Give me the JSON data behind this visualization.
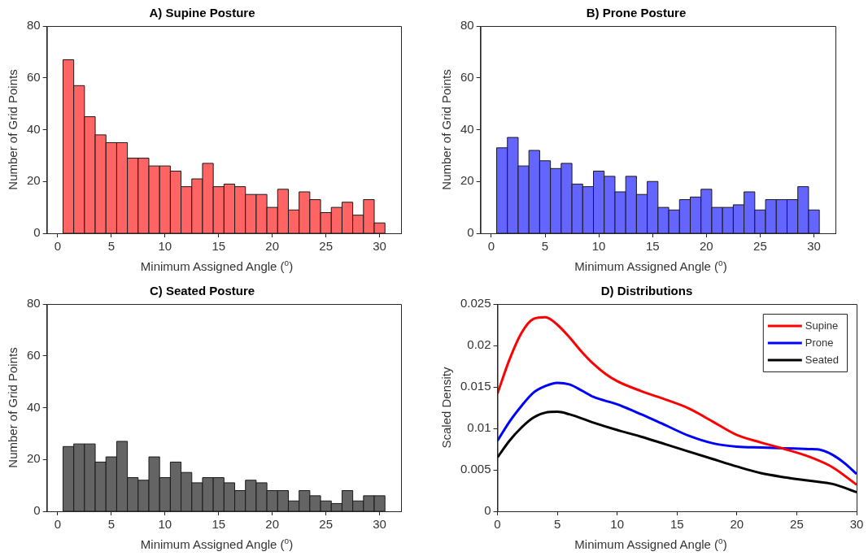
{
  "chart_data": [
    {
      "type": "histogram",
      "title": "A) Supine Posture",
      "xlabel": "Minimum Assigned Angle ($^{o}$)",
      "ylabel": "Number of Grid Points",
      "bins": [
        0.5,
        1.5,
        2.5,
        3.5,
        4.5,
        5.5,
        6.5,
        7.5,
        8.5,
        9.5,
        10.5,
        11.5,
        12.5,
        13.5,
        14.5,
        15.5,
        16.5,
        17.5,
        18.5,
        19.5,
        20.5,
        21.5,
        22.5,
        23.5,
        24.5,
        25.5,
        26.5,
        27.5,
        28.5,
        29.5,
        30.5
      ],
      "values": [
        67,
        57,
        45,
        38,
        35,
        35,
        29,
        29,
        26,
        26,
        24,
        18,
        21,
        27,
        18,
        19,
        18,
        15,
        15,
        10,
        17,
        9,
        16,
        13,
        8,
        10,
        12,
        7,
        13,
        4
      ],
      "color": "#ff6464",
      "xlim": [
        -1,
        32
      ],
      "xticks": [
        0,
        5,
        10,
        15,
        20,
        25,
        30
      ],
      "ylim": [
        0,
        80
      ],
      "yticks": [
        0,
        20,
        40,
        60,
        80
      ]
    },
    {
      "type": "histogram",
      "title": "B) Prone Posture",
      "xlabel": "Minimum Assigned Angle ($^{o}$)",
      "ylabel": "Number of Grid Points",
      "bins": [
        0.5,
        1.5,
        2.5,
        3.5,
        4.5,
        5.5,
        6.5,
        7.5,
        8.5,
        9.5,
        10.5,
        11.5,
        12.5,
        13.5,
        14.5,
        15.5,
        16.5,
        17.5,
        18.5,
        19.5,
        20.5,
        21.5,
        22.5,
        23.5,
        24.5,
        25.5,
        26.5,
        27.5,
        28.5,
        29.5,
        30.5
      ],
      "values": [
        33,
        37,
        26,
        32,
        28,
        25,
        27,
        19,
        18,
        24,
        22,
        16,
        22,
        15,
        20,
        10,
        9,
        13,
        14,
        17,
        10,
        10,
        11,
        16,
        9,
        13,
        13,
        13,
        18,
        9
      ],
      "color": "#6464ff",
      "xlim": [
        -1,
        32
      ],
      "xticks": [
        0,
        5,
        10,
        15,
        20,
        25,
        30
      ],
      "ylim": [
        0,
        80
      ],
      "yticks": [
        0,
        20,
        40,
        60,
        80
      ]
    },
    {
      "type": "histogram",
      "title": "C) Seated Posture",
      "xlabel": "Minimum Assigned Angle ($^{o}$)",
      "ylabel": "Number of Grid Points",
      "bins": [
        0.5,
        1.5,
        2.5,
        3.5,
        4.5,
        5.5,
        6.5,
        7.5,
        8.5,
        9.5,
        10.5,
        11.5,
        12.5,
        13.5,
        14.5,
        15.5,
        16.5,
        17.5,
        18.5,
        19.5,
        20.5,
        21.5,
        22.5,
        23.5,
        24.5,
        25.5,
        26.5,
        27.5,
        28.5,
        29.5,
        30.5
      ],
      "values": [
        25,
        26,
        26,
        19,
        21,
        27,
        13,
        12,
        21,
        13,
        19,
        15,
        11,
        13,
        13,
        11,
        8,
        12,
        11,
        8,
        8,
        4,
        8,
        6,
        4,
        3,
        8,
        4,
        6,
        6
      ],
      "color": "#646464",
      "xlim": [
        -1,
        32
      ],
      "xticks": [
        0,
        5,
        10,
        15,
        20,
        25,
        30
      ],
      "ylim": [
        0,
        80
      ],
      "yticks": [
        0,
        20,
        40,
        60,
        80
      ]
    },
    {
      "type": "line",
      "title": "D) Distributions",
      "xlabel": "Minimum Assigned Angle ($^{o}$)",
      "ylabel": "Scaled Density",
      "legend": "top right",
      "xlim": [
        0,
        30
      ],
      "xticks": [
        0,
        5,
        10,
        15,
        20,
        25,
        30
      ],
      "ylim": [
        0,
        0.025
      ],
      "yticks": [
        0,
        0.005,
        0.01,
        0.015,
        0.02,
        0.025
      ],
      "series": [
        {
          "name": "Supine",
          "color": "#ff0000",
          "x": [
            0,
            1,
            2,
            3,
            4,
            5,
            6,
            7,
            8,
            9,
            10,
            12,
            14,
            16,
            18,
            20,
            22,
            24,
            26,
            28,
            30
          ],
          "values": [
            0.0142,
            0.0183,
            0.0215,
            0.0232,
            0.0234,
            0.0225,
            0.021,
            0.0193,
            0.0178,
            0.0166,
            0.0157,
            0.0145,
            0.0135,
            0.0124,
            0.0108,
            0.0092,
            0.0083,
            0.0075,
            0.0066,
            0.0053,
            0.0032
          ]
        },
        {
          "name": "Prone",
          "color": "#0000ff",
          "x": [
            0,
            1,
            2,
            3,
            4,
            5,
            6,
            7,
            8,
            10,
            12,
            14,
            16,
            18,
            20,
            22,
            24,
            26,
            27,
            28,
            29,
            30
          ],
          "values": [
            0.0085,
            0.0108,
            0.0127,
            0.0143,
            0.0151,
            0.0155,
            0.0153,
            0.0146,
            0.0138,
            0.0129,
            0.0117,
            0.0104,
            0.0091,
            0.0082,
            0.0078,
            0.0077,
            0.0076,
            0.0075,
            0.0074,
            0.0068,
            0.0058,
            0.0045
          ]
        },
        {
          "name": "Seated",
          "color": "#000000",
          "x": [
            0,
            1,
            2,
            3,
            4,
            5,
            6,
            8,
            10,
            12,
            14,
            16,
            18,
            20,
            22,
            24,
            26,
            28,
            30
          ],
          "values": [
            0.0065,
            0.0085,
            0.0101,
            0.0113,
            0.0119,
            0.012,
            0.0117,
            0.0107,
            0.0098,
            0.009,
            0.0081,
            0.0072,
            0.0063,
            0.0054,
            0.0046,
            0.0041,
            0.0037,
            0.0033,
            0.0023
          ]
        }
      ]
    }
  ]
}
